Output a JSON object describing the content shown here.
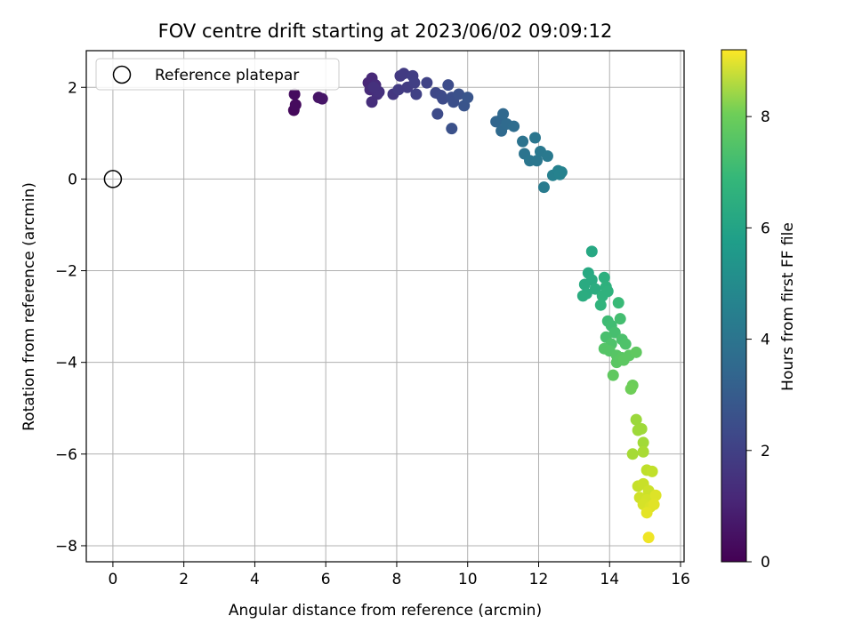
{
  "chart_data": {
    "type": "scatter",
    "title": "FOV centre drift starting at 2023/06/02 09:09:12",
    "xlabel": "Angular distance from reference (arcmin)",
    "ylabel": "Rotation from reference (arcmin)",
    "xlim": [
      -0.75,
      16.1
    ],
    "ylim": [
      -8.35,
      2.8
    ],
    "xticks": [
      0,
      2,
      4,
      6,
      8,
      10,
      12,
      14,
      16
    ],
    "yticks": [
      -8,
      -6,
      -4,
      -2,
      0,
      2
    ],
    "grid": true,
    "legend": {
      "placement": "top-left",
      "entries": [
        "Reference platepar"
      ]
    },
    "reference_point": {
      "x": 0,
      "y": 0,
      "marker": "open-circle"
    },
    "colorbar": {
      "label": "Hours from first FF file",
      "range": [
        0,
        9.2
      ],
      "ticks": [
        0,
        2,
        4,
        6,
        8
      ],
      "colormap": "viridis"
    },
    "points": [
      {
        "x": 5.1,
        "y": 1.5,
        "h": 0.2
      },
      {
        "x": 5.15,
        "y": 1.62,
        "h": 0.25
      },
      {
        "x": 5.12,
        "y": 1.85,
        "h": 0.3
      },
      {
        "x": 5.8,
        "y": 1.78,
        "h": 0.5
      },
      {
        "x": 5.9,
        "y": 1.75,
        "h": 0.55
      },
      {
        "x": 7.2,
        "y": 2.1,
        "h": 1.0
      },
      {
        "x": 7.3,
        "y": 2.2,
        "h": 1.05
      },
      {
        "x": 7.25,
        "y": 1.95,
        "h": 1.1
      },
      {
        "x": 7.4,
        "y": 2.05,
        "h": 1.15
      },
      {
        "x": 7.3,
        "y": 1.68,
        "h": 1.2
      },
      {
        "x": 7.45,
        "y": 1.85,
        "h": 1.25
      },
      {
        "x": 7.5,
        "y": 1.9,
        "h": 1.3
      },
      {
        "x": 7.35,
        "y": 2.0,
        "h": 1.3
      },
      {
        "x": 7.9,
        "y": 1.85,
        "h": 1.5
      },
      {
        "x": 8.1,
        "y": 2.25,
        "h": 1.55
      },
      {
        "x": 8.2,
        "y": 2.3,
        "h": 1.6
      },
      {
        "x": 8.3,
        "y": 2.0,
        "h": 1.65
      },
      {
        "x": 8.05,
        "y": 1.95,
        "h": 1.6
      },
      {
        "x": 8.45,
        "y": 2.25,
        "h": 1.7
      },
      {
        "x": 8.5,
        "y": 2.1,
        "h": 1.75
      },
      {
        "x": 8.55,
        "y": 1.85,
        "h": 1.8
      },
      {
        "x": 8.85,
        "y": 2.1,
        "h": 1.85
      },
      {
        "x": 9.1,
        "y": 1.88,
        "h": 2.0
      },
      {
        "x": 9.25,
        "y": 1.82,
        "h": 2.05
      },
      {
        "x": 9.3,
        "y": 1.75,
        "h": 2.1
      },
      {
        "x": 9.15,
        "y": 1.42,
        "h": 2.1
      },
      {
        "x": 9.45,
        "y": 2.05,
        "h": 2.15
      },
      {
        "x": 9.55,
        "y": 1.78,
        "h": 2.2
      },
      {
        "x": 9.6,
        "y": 1.68,
        "h": 2.25
      },
      {
        "x": 9.75,
        "y": 1.85,
        "h": 2.3
      },
      {
        "x": 9.55,
        "y": 1.1,
        "h": 2.3
      },
      {
        "x": 9.9,
        "y": 1.6,
        "h": 2.4
      },
      {
        "x": 10.0,
        "y": 1.78,
        "h": 2.45
      },
      {
        "x": 10.8,
        "y": 1.25,
        "h": 3.0
      },
      {
        "x": 10.95,
        "y": 1.3,
        "h": 3.05
      },
      {
        "x": 11.0,
        "y": 1.42,
        "h": 3.1
      },
      {
        "x": 10.95,
        "y": 1.05,
        "h": 3.15
      },
      {
        "x": 11.1,
        "y": 1.2,
        "h": 3.2
      },
      {
        "x": 11.3,
        "y": 1.15,
        "h": 3.25
      },
      {
        "x": 11.55,
        "y": 0.82,
        "h": 3.5
      },
      {
        "x": 11.6,
        "y": 0.55,
        "h": 3.55
      },
      {
        "x": 11.75,
        "y": 0.4,
        "h": 3.6
      },
      {
        "x": 11.9,
        "y": 0.9,
        "h": 3.6
      },
      {
        "x": 11.95,
        "y": 0.4,
        "h": 3.65
      },
      {
        "x": 12.05,
        "y": 0.6,
        "h": 3.7
      },
      {
        "x": 12.25,
        "y": 0.5,
        "h": 3.75
      },
      {
        "x": 12.15,
        "y": -0.18,
        "h": 3.8
      },
      {
        "x": 12.4,
        "y": 0.08,
        "h": 4.0
      },
      {
        "x": 12.55,
        "y": 0.18,
        "h": 4.05
      },
      {
        "x": 12.65,
        "y": 0.15,
        "h": 4.1
      },
      {
        "x": 12.6,
        "y": 0.1,
        "h": 4.1
      },
      {
        "x": 13.5,
        "y": -1.58,
        "h": 5.5
      },
      {
        "x": 13.4,
        "y": -2.05,
        "h": 5.55
      },
      {
        "x": 13.3,
        "y": -2.3,
        "h": 5.6
      },
      {
        "x": 13.5,
        "y": -2.2,
        "h": 5.6
      },
      {
        "x": 13.35,
        "y": -2.5,
        "h": 5.65
      },
      {
        "x": 13.6,
        "y": -2.4,
        "h": 5.7
      },
      {
        "x": 13.25,
        "y": -2.55,
        "h": 5.7
      },
      {
        "x": 13.85,
        "y": -2.15,
        "h": 5.8
      },
      {
        "x": 13.9,
        "y": -2.35,
        "h": 5.85
      },
      {
        "x": 13.95,
        "y": -2.45,
        "h": 5.9
      },
      {
        "x": 13.8,
        "y": -2.55,
        "h": 5.9
      },
      {
        "x": 13.75,
        "y": -2.75,
        "h": 5.95
      },
      {
        "x": 14.25,
        "y": -2.7,
        "h": 6.2
      },
      {
        "x": 13.95,
        "y": -3.1,
        "h": 6.3
      },
      {
        "x": 14.05,
        "y": -3.2,
        "h": 6.35
      },
      {
        "x": 14.3,
        "y": -3.05,
        "h": 6.4
      },
      {
        "x": 14.15,
        "y": -3.35,
        "h": 6.45
      },
      {
        "x": 13.9,
        "y": -3.45,
        "h": 6.5
      },
      {
        "x": 14.35,
        "y": -3.5,
        "h": 6.55
      },
      {
        "x": 14.05,
        "y": -3.6,
        "h": 6.6
      },
      {
        "x": 14.45,
        "y": -3.6,
        "h": 6.6
      },
      {
        "x": 13.85,
        "y": -3.7,
        "h": 6.7
      },
      {
        "x": 14.0,
        "y": -3.75,
        "h": 6.7
      },
      {
        "x": 14.2,
        "y": -3.85,
        "h": 6.75
      },
      {
        "x": 14.35,
        "y": -3.9,
        "h": 6.8
      },
      {
        "x": 14.2,
        "y": -4.0,
        "h": 6.8
      },
      {
        "x": 14.4,
        "y": -3.95,
        "h": 6.85
      },
      {
        "x": 14.55,
        "y": -3.85,
        "h": 6.85
      },
      {
        "x": 14.75,
        "y": -3.78,
        "h": 6.9
      },
      {
        "x": 14.1,
        "y": -4.28,
        "h": 6.9
      },
      {
        "x": 14.65,
        "y": -4.5,
        "h": 7.1
      },
      {
        "x": 14.6,
        "y": -4.58,
        "h": 7.15
      },
      {
        "x": 14.75,
        "y": -5.25,
        "h": 7.8
      },
      {
        "x": 14.8,
        "y": -5.48,
        "h": 7.85
      },
      {
        "x": 14.9,
        "y": -5.45,
        "h": 7.85
      },
      {
        "x": 14.95,
        "y": -5.75,
        "h": 7.9
      },
      {
        "x": 14.65,
        "y": -6.0,
        "h": 7.95
      },
      {
        "x": 14.95,
        "y": -5.95,
        "h": 8.0
      },
      {
        "x": 15.05,
        "y": -6.35,
        "h": 8.3
      },
      {
        "x": 15.2,
        "y": -6.38,
        "h": 8.35
      },
      {
        "x": 14.8,
        "y": -6.7,
        "h": 8.4
      },
      {
        "x": 14.95,
        "y": -6.65,
        "h": 8.45
      },
      {
        "x": 15.1,
        "y": -6.8,
        "h": 8.5
      },
      {
        "x": 14.85,
        "y": -6.95,
        "h": 8.55
      },
      {
        "x": 15.05,
        "y": -7.0,
        "h": 8.6
      },
      {
        "x": 14.95,
        "y": -7.1,
        "h": 8.65
      },
      {
        "x": 15.15,
        "y": -7.15,
        "h": 8.7
      },
      {
        "x": 15.3,
        "y": -6.9,
        "h": 8.75
      },
      {
        "x": 15.25,
        "y": -7.1,
        "h": 8.8
      },
      {
        "x": 15.05,
        "y": -7.28,
        "h": 8.85
      },
      {
        "x": 15.1,
        "y": -7.82,
        "h": 9.0
      }
    ]
  }
}
